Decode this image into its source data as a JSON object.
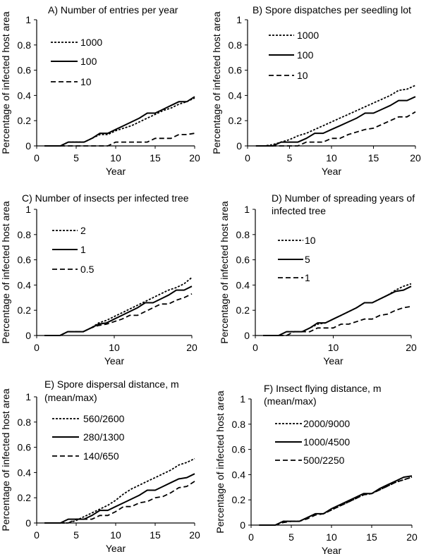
{
  "chart_data": [
    {
      "type": "line",
      "title": "A) Number of entries per year",
      "xlabel": "Year",
      "ylabel": "Percentage of infected host area",
      "xlim": [
        0,
        20
      ],
      "ylim": [
        0,
        1
      ],
      "xticks": [
        "0",
        "5",
        "10",
        "15",
        "20"
      ],
      "yticks": [
        "0",
        "0.2",
        "0.4",
        "0.6",
        "0.8",
        "1"
      ],
      "x": [
        1,
        2,
        3,
        4,
        5,
        6,
        7,
        8,
        9,
        10,
        11,
        12,
        13,
        14,
        15,
        16,
        17,
        18,
        19,
        20
      ],
      "series": [
        {
          "name": "1000",
          "style": "short-dash",
          "values": [
            0,
            0,
            0,
            0.03,
            0.03,
            0.03,
            0.06,
            0.09,
            0.09,
            0.12,
            0.14,
            0.16,
            0.19,
            0.22,
            0.25,
            0.28,
            0.3,
            0.33,
            0.35,
            0.38
          ]
        },
        {
          "name": "100",
          "style": "solid",
          "values": [
            0,
            0,
            0,
            0.03,
            0.03,
            0.03,
            0.06,
            0.1,
            0.1,
            0.13,
            0.16,
            0.19,
            0.22,
            0.26,
            0.26,
            0.29,
            0.32,
            0.35,
            0.35,
            0.39
          ]
        },
        {
          "name": "10",
          "style": "long-dash",
          "values": [
            0,
            0,
            0,
            0,
            0,
            0,
            0,
            0,
            0,
            0.03,
            0.03,
            0.03,
            0.03,
            0.03,
            0.06,
            0.06,
            0.06,
            0.09,
            0.09,
            0.1
          ]
        }
      ]
    },
    {
      "type": "line",
      "title": "B) Spore dispatches per seedling lot",
      "xlabel": "Year",
      "ylabel": "Percentage of infected host area",
      "xlim": [
        0,
        20
      ],
      "ylim": [
        0,
        1
      ],
      "xticks": [
        "0",
        "5",
        "10",
        "15",
        "20"
      ],
      "yticks": [
        "0",
        "0.2",
        "0.4",
        "0.6",
        "0.8",
        "1"
      ],
      "x": [
        1,
        2,
        3,
        4,
        5,
        6,
        7,
        8,
        9,
        10,
        11,
        12,
        13,
        14,
        15,
        16,
        17,
        18,
        19,
        20
      ],
      "series": [
        {
          "name": "1000",
          "style": "short-dash",
          "values": [
            0,
            0,
            0.01,
            0.03,
            0.05,
            0.08,
            0.1,
            0.13,
            0.16,
            0.19,
            0.22,
            0.25,
            0.28,
            0.31,
            0.34,
            0.37,
            0.4,
            0.44,
            0.45,
            0.48
          ]
        },
        {
          "name": "100",
          "style": "solid",
          "values": [
            0,
            0,
            0,
            0.03,
            0.03,
            0.03,
            0.06,
            0.1,
            0.1,
            0.13,
            0.16,
            0.19,
            0.22,
            0.26,
            0.26,
            0.29,
            0.32,
            0.36,
            0.36,
            0.39
          ]
        },
        {
          "name": "10",
          "style": "long-dash",
          "values": [
            0,
            0,
            0,
            0,
            0,
            0,
            0.03,
            0.03,
            0.03,
            0.06,
            0.06,
            0.09,
            0.11,
            0.13,
            0.14,
            0.17,
            0.2,
            0.23,
            0.23,
            0.27
          ]
        }
      ]
    },
    {
      "type": "line",
      "title": "C) Number of insects per infected tree",
      "xlabel": "Year",
      "ylabel": "Percentage of infected host area",
      "xlim": [
        0,
        20
      ],
      "ylim": [
        0,
        1
      ],
      "xticks": [
        "0",
        "10",
        "20"
      ],
      "yticks": [
        "0",
        "0.2",
        "0.4",
        "0.6",
        "0.8",
        "1"
      ],
      "x": [
        1,
        2,
        3,
        4,
        5,
        6,
        7,
        8,
        9,
        10,
        11,
        12,
        13,
        14,
        15,
        16,
        17,
        18,
        19,
        20
      ],
      "series": [
        {
          "name": "2",
          "style": "short-dash",
          "values": [
            0,
            0,
            0,
            0.03,
            0.03,
            0.03,
            0.06,
            0.1,
            0.12,
            0.15,
            0.18,
            0.21,
            0.24,
            0.27,
            0.3,
            0.33,
            0.36,
            0.38,
            0.41,
            0.46
          ]
        },
        {
          "name": "1",
          "style": "solid",
          "values": [
            0,
            0,
            0,
            0.03,
            0.03,
            0.03,
            0.06,
            0.09,
            0.1,
            0.13,
            0.16,
            0.19,
            0.22,
            0.26,
            0.26,
            0.29,
            0.32,
            0.36,
            0.36,
            0.39
          ]
        },
        {
          "name": "0.5",
          "style": "long-dash",
          "values": [
            0,
            0,
            0,
            0.03,
            0.03,
            0.03,
            0.06,
            0.08,
            0.09,
            0.11,
            0.13,
            0.16,
            0.16,
            0.19,
            0.22,
            0.25,
            0.25,
            0.28,
            0.3,
            0.33
          ]
        }
      ]
    },
    {
      "type": "line",
      "title": "D) Number of spreading years of infected tree",
      "title_lines": [
        "D) Number of spreading years of",
        "infected tree"
      ],
      "xlabel": "Year",
      "ylabel": "Percentage of infected host area",
      "xlim": [
        0,
        20
      ],
      "ylim": [
        0,
        1
      ],
      "xticks": [
        "0",
        "10",
        "20"
      ],
      "yticks": [
        "0",
        "0.2",
        "0.4",
        "0.6",
        "0.8",
        "1"
      ],
      "x": [
        1,
        2,
        3,
        4,
        5,
        6,
        7,
        8,
        9,
        10,
        11,
        12,
        13,
        14,
        15,
        16,
        17,
        18,
        19,
        20
      ],
      "series": [
        {
          "name": "10",
          "style": "short-dash",
          "values": [
            0,
            0,
            0,
            0.03,
            0.03,
            0.03,
            0.06,
            0.09,
            0.1,
            0.13,
            0.16,
            0.19,
            0.22,
            0.26,
            0.26,
            0.29,
            0.32,
            0.36,
            0.39,
            0.41
          ]
        },
        {
          "name": "5",
          "style": "solid",
          "values": [
            0,
            0,
            0,
            0.03,
            0.03,
            0.03,
            0.06,
            0.1,
            0.1,
            0.13,
            0.16,
            0.19,
            0.22,
            0.26,
            0.26,
            0.29,
            0.32,
            0.35,
            0.36,
            0.39
          ]
        },
        {
          "name": "1",
          "style": "long-dash",
          "values": [
            0,
            0,
            0,
            0,
            0.03,
            0.03,
            0.03,
            0.06,
            0.06,
            0.06,
            0.09,
            0.09,
            0.11,
            0.13,
            0.13,
            0.16,
            0.17,
            0.2,
            0.22,
            0.23
          ]
        }
      ]
    },
    {
      "type": "line",
      "title": "E) Spore dispersal distance, m (mean/max)",
      "title_lines": [
        "E) Spore dispersal distance, m",
        "(mean/max)"
      ],
      "xlabel": "Year",
      "ylabel": "Percentage of infected host area",
      "xlim": [
        0,
        20
      ],
      "ylim": [
        0,
        1
      ],
      "xticks": [
        "0",
        "5",
        "10",
        "15",
        "20"
      ],
      "yticks": [
        "0",
        "0.2",
        "0.4",
        "0.6",
        "0.8",
        "1"
      ],
      "x": [
        1,
        2,
        3,
        4,
        5,
        6,
        7,
        8,
        9,
        10,
        11,
        12,
        13,
        14,
        15,
        16,
        17,
        18,
        19,
        20
      ],
      "series": [
        {
          "name": "560/2600",
          "style": "short-dash",
          "values": [
            0,
            0,
            0,
            0,
            0.02,
            0.05,
            0.08,
            0.11,
            0.14,
            0.18,
            0.23,
            0.27,
            0.3,
            0.33,
            0.36,
            0.39,
            0.42,
            0.46,
            0.48,
            0.51
          ]
        },
        {
          "name": "280/1300",
          "style": "solid",
          "values": [
            0,
            0,
            0,
            0.03,
            0.03,
            0.03,
            0.06,
            0.1,
            0.1,
            0.13,
            0.16,
            0.19,
            0.22,
            0.26,
            0.26,
            0.29,
            0.32,
            0.35,
            0.36,
            0.39
          ]
        },
        {
          "name": "140/650",
          "style": "long-dash",
          "values": [
            0,
            0,
            0,
            0,
            0.03,
            0.03,
            0.03,
            0.06,
            0.06,
            0.09,
            0.13,
            0.13,
            0.16,
            0.17,
            0.2,
            0.21,
            0.24,
            0.28,
            0.29,
            0.33
          ]
        }
      ]
    },
    {
      "type": "line",
      "title": "F) Insect flying distance, m (mean/max)",
      "title_lines": [
        "F) Insect flying distance, m",
        "(mean/max)"
      ],
      "xlabel": "Year",
      "ylabel": "Percentage of infected host area",
      "xlim": [
        0,
        20
      ],
      "ylim": [
        0,
        1
      ],
      "xticks": [
        "0",
        "5",
        "10",
        "15",
        "20"
      ],
      "yticks": [
        "0",
        "0.2",
        "0.4",
        "0.6",
        "0.8",
        "1"
      ],
      "x": [
        1,
        2,
        3,
        4,
        5,
        6,
        7,
        8,
        9,
        10,
        11,
        12,
        13,
        14,
        15,
        16,
        17,
        18,
        19,
        20
      ],
      "series": [
        {
          "name": "2000/9000",
          "style": "short-dash",
          "values": [
            0,
            0,
            0,
            0.03,
            0.03,
            0.03,
            0.06,
            0.09,
            0.09,
            0.12,
            0.15,
            0.18,
            0.21,
            0.24,
            0.25,
            0.28,
            0.31,
            0.34,
            0.36,
            0.38
          ]
        },
        {
          "name": "1000/4500",
          "style": "solid",
          "values": [
            0,
            0,
            0,
            0.03,
            0.03,
            0.03,
            0.06,
            0.09,
            0.09,
            0.13,
            0.16,
            0.19,
            0.22,
            0.25,
            0.25,
            0.29,
            0.32,
            0.35,
            0.38,
            0.39
          ]
        },
        {
          "name": "500/2250",
          "style": "long-dash",
          "values": [
            0,
            0,
            0,
            0.02,
            0.03,
            0.03,
            0.05,
            0.08,
            0.09,
            0.12,
            0.15,
            0.18,
            0.21,
            0.24,
            0.25,
            0.28,
            0.31,
            0.34,
            0.36,
            0.38
          ]
        }
      ]
    }
  ]
}
